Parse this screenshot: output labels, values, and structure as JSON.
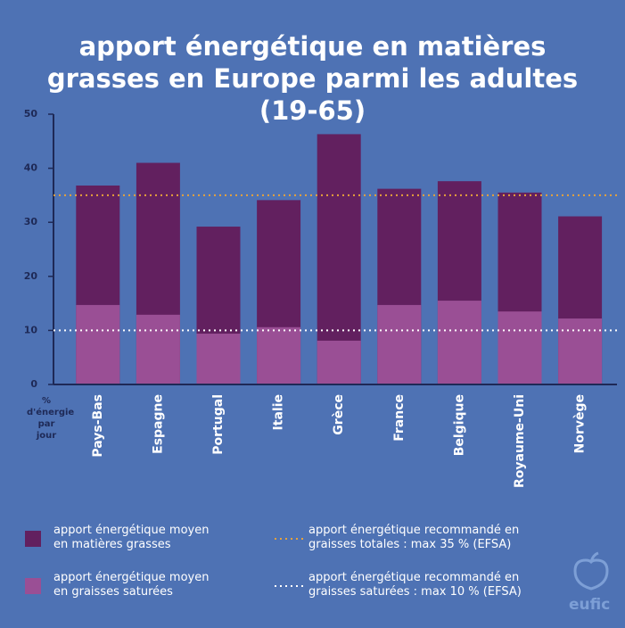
{
  "chart_data": {
    "type": "bar",
    "title": "apport énergétique en matières grasses en Europe parmi les adultes (19-65)",
    "ylabel": "% d'énergie par jour",
    "categories": [
      "Pays-Bas",
      "Espagne",
      "Portugal",
      "Italie",
      "Grèce",
      "France",
      "Belgique",
      "Royaume-Uni",
      "Norvège"
    ],
    "series": [
      {
        "name": "apport énergétique moyen en matières grasses",
        "color": "#62205f",
        "values": [
          36.8,
          41,
          29.2,
          34.1,
          46.3,
          36.2,
          37.6,
          35.5,
          31.1
        ]
      },
      {
        "name": "apport énergétique moyen en graisses saturées",
        "color": "#9a4f95",
        "values": [
          14.7,
          12.9,
          9.4,
          10.6,
          8.1,
          14.7,
          15.5,
          13.5,
          12.2
        ]
      }
    ],
    "reference_lines": [
      {
        "value": 35,
        "label": "apport énergétique recommandé en graisses totales : max 35 % (EFSA)",
        "color": "#e8a23a"
      },
      {
        "value": 10,
        "label": "apport énergétique recommandé en graisses saturées : max 10 % (EFSA)",
        "color": "#ffffff"
      }
    ],
    "ylim": [
      0,
      50
    ],
    "yticks": [
      0,
      10,
      20,
      30,
      40,
      50
    ],
    "grid": false,
    "logo": "eufic"
  }
}
